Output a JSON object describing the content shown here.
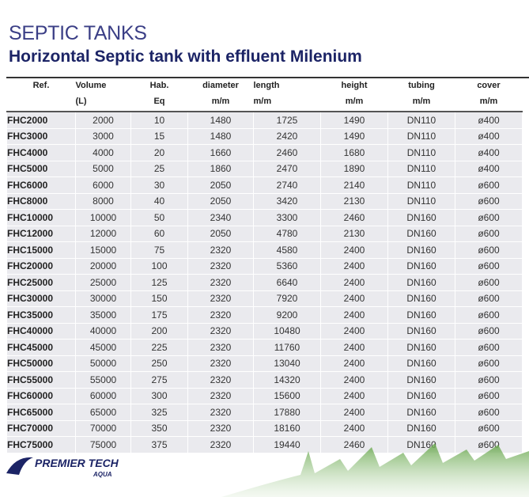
{
  "header": {
    "title": "SEPTIC TANKS",
    "subtitle": "Horizontal Septic tank with effluent Milenium"
  },
  "table": {
    "columns": [
      [
        "Ref."
      ],
      [
        "Volume",
        "(L)"
      ],
      [
        "Hab.",
        "Eq"
      ],
      [
        "diameter",
        "m/m"
      ],
      [
        "length",
        "m/m"
      ],
      [
        "height",
        "m/m"
      ],
      [
        "tubing",
        "m/m"
      ],
      [
        "cover",
        "m/m"
      ]
    ],
    "rows": [
      [
        "FHC2000",
        "2000",
        "10",
        "1480",
        "1725",
        "1490",
        "DN110",
        "ø400"
      ],
      [
        "FHC3000",
        "3000",
        "15",
        "1480",
        "2420",
        "1490",
        "DN110",
        "ø400"
      ],
      [
        "FHC4000",
        "4000",
        "20",
        "1660",
        "2460",
        "1680",
        "DN110",
        "ø400"
      ],
      [
        "FHC5000",
        "5000",
        "25",
        "1860",
        "2470",
        "1890",
        "DN110",
        "ø400"
      ],
      [
        "FHC6000",
        "6000",
        "30",
        "2050",
        "2740",
        "2140",
        "DN110",
        "ø600"
      ],
      [
        "FHC8000",
        "8000",
        "40",
        "2050",
        "3420",
        "2130",
        "DN110",
        "ø600"
      ],
      [
        "FHC10000",
        "10000",
        "50",
        "2340",
        "3300",
        "2460",
        "DN160",
        "ø600"
      ],
      [
        "FHC12000",
        "12000",
        "60",
        "2050",
        "4780",
        "2130",
        "DN160",
        "ø600"
      ],
      [
        "FHC15000",
        "15000",
        "75",
        "2320",
        "4580",
        "2400",
        "DN160",
        "ø600"
      ],
      [
        "FHC20000",
        "20000",
        "100",
        "2320",
        "5360",
        "2400",
        "DN160",
        "ø600"
      ],
      [
        "FHC25000",
        "25000",
        "125",
        "2320",
        "6640",
        "2400",
        "DN160",
        "ø600"
      ],
      [
        "FHC30000",
        "30000",
        "150",
        "2320",
        "7920",
        "2400",
        "DN160",
        "ø600"
      ],
      [
        "FHC35000",
        "35000",
        "175",
        "2320",
        "9200",
        "2400",
        "DN160",
        "ø600"
      ],
      [
        "FHC40000",
        "40000",
        "200",
        "2320",
        "10480",
        "2400",
        "DN160",
        "ø600"
      ],
      [
        "FHC45000",
        "45000",
        "225",
        "2320",
        "11760",
        "2400",
        "DN160",
        "ø600"
      ],
      [
        "FHC50000",
        "50000",
        "250",
        "2320",
        "13040",
        "2400",
        "DN160",
        "ø600"
      ],
      [
        "FHC55000",
        "55000",
        "275",
        "2320",
        "14320",
        "2400",
        "DN160",
        "ø600"
      ],
      [
        "FHC60000",
        "60000",
        "300",
        "2320",
        "15600",
        "2400",
        "DN160",
        "ø600"
      ],
      [
        "FHC65000",
        "65000",
        "325",
        "2320",
        "17880",
        "2400",
        "DN160",
        "ø600"
      ],
      [
        "FHC70000",
        "70000",
        "350",
        "2320",
        "18160",
        "2400",
        "DN160",
        "ø600"
      ],
      [
        "FHC75000",
        "75000",
        "375",
        "2320",
        "19440",
        "2460",
        "DN160",
        "ø600"
      ]
    ]
  },
  "logo": {
    "name": "PREMIER TECH",
    "sub": "AQUA"
  }
}
